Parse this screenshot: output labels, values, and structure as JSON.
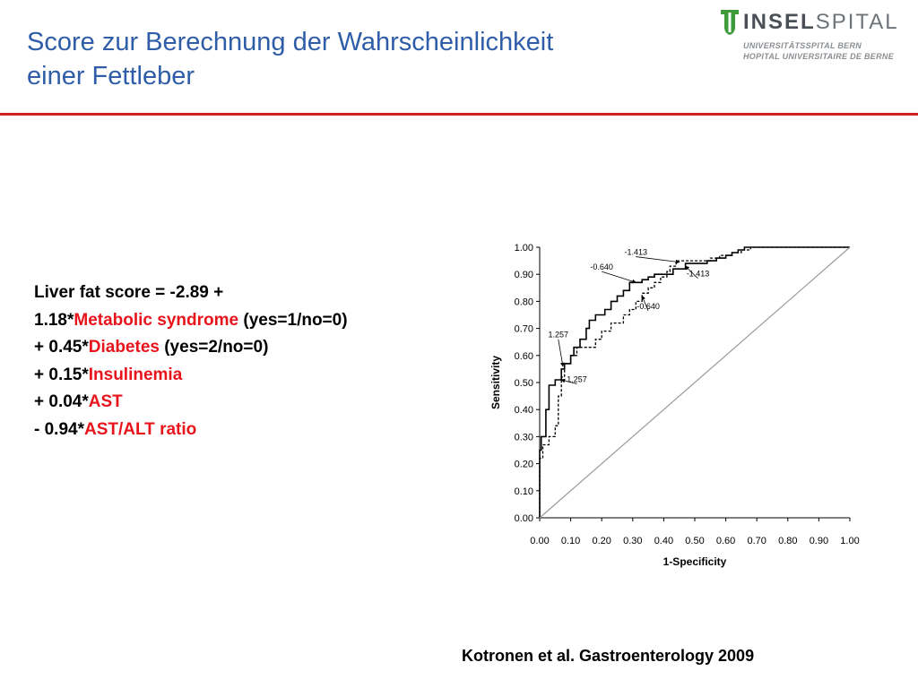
{
  "header": {
    "title_line1": "Score zur Berechnung der Wahrscheinlichkeit",
    "title_line2": "einer Fettleber"
  },
  "logo": {
    "brand_bold": "INSEL",
    "brand_light": "SPITAL",
    "subtitle1": "UNIVERSITÄTSSPITAL BERN",
    "subtitle2": "HOPITAL UNIVERSITAIRE DE BERNE",
    "accent_color": "#3f9a3a"
  },
  "formula": {
    "line1": "Liver fat score = -2.89 +",
    "line2_prefix": "1.18*",
    "line2_term": "Metabolic syndrome",
    "line2_suffix": " (yes=1/no=0)",
    "line3_prefix": "+ 0.45*",
    "line3_term": "Diabetes",
    "line3_suffix": " (yes=2/no=0)",
    "line4_prefix": "+ 0.15*",
    "line4_term": "Insulinemia",
    "line5_prefix": "+ 0.04*",
    "line5_term": "AST",
    "line6_prefix": "- 0.94*",
    "line6_term": "AST/ALT ratio",
    "highlight_color": "#e8141b"
  },
  "chart_data": {
    "type": "line",
    "xlabel": "1-Specificity",
    "ylabel": "Sensitivity",
    "xlim": [
      0,
      1
    ],
    "ylim": [
      0,
      1
    ],
    "x_ticks": [
      "0.00",
      "0.10",
      "0.20",
      "0.30",
      "0.40",
      "0.50",
      "0.60",
      "0.70",
      "0.80",
      "0.90",
      "1.00"
    ],
    "y_ticks": [
      "0.00",
      "0.10",
      "0.20",
      "0.30",
      "0.40",
      "0.50",
      "0.60",
      "0.70",
      "0.80",
      "0.90",
      "1.00"
    ],
    "grid": false,
    "legend": "none",
    "series": [
      {
        "style": "solid",
        "points": [
          [
            0,
            0
          ],
          [
            0,
            0.25
          ],
          [
            0.005,
            0.25
          ],
          [
            0.005,
            0.3
          ],
          [
            0.02,
            0.3
          ],
          [
            0.02,
            0.4
          ],
          [
            0.03,
            0.4
          ],
          [
            0.03,
            0.49
          ],
          [
            0.05,
            0.49
          ],
          [
            0.05,
            0.51
          ],
          [
            0.07,
            0.51
          ],
          [
            0.07,
            0.55
          ],
          [
            0.08,
            0.55
          ],
          [
            0.08,
            0.57
          ],
          [
            0.1,
            0.57
          ],
          [
            0.1,
            0.6
          ],
          [
            0.11,
            0.6
          ],
          [
            0.11,
            0.63
          ],
          [
            0.13,
            0.63
          ],
          [
            0.13,
            0.66
          ],
          [
            0.15,
            0.66
          ],
          [
            0.15,
            0.7
          ],
          [
            0.16,
            0.7
          ],
          [
            0.16,
            0.73
          ],
          [
            0.18,
            0.73
          ],
          [
            0.18,
            0.75
          ],
          [
            0.21,
            0.75
          ],
          [
            0.21,
            0.77
          ],
          [
            0.23,
            0.77
          ],
          [
            0.23,
            0.8
          ],
          [
            0.25,
            0.8
          ],
          [
            0.25,
            0.82
          ],
          [
            0.27,
            0.82
          ],
          [
            0.27,
            0.84
          ],
          [
            0.29,
            0.84
          ],
          [
            0.29,
            0.87
          ],
          [
            0.33,
            0.87
          ],
          [
            0.33,
            0.88
          ],
          [
            0.35,
            0.88
          ],
          [
            0.35,
            0.89
          ],
          [
            0.37,
            0.89
          ],
          [
            0.37,
            0.9
          ],
          [
            0.43,
            0.9
          ],
          [
            0.43,
            0.92
          ],
          [
            0.47,
            0.92
          ],
          [
            0.47,
            0.94
          ],
          [
            0.54,
            0.94
          ],
          [
            0.54,
            0.95
          ],
          [
            0.57,
            0.95
          ],
          [
            0.57,
            0.96
          ],
          [
            0.6,
            0.96
          ],
          [
            0.6,
            0.97
          ],
          [
            0.62,
            0.97
          ],
          [
            0.62,
            0.98
          ],
          [
            0.64,
            0.98
          ],
          [
            0.64,
            0.99
          ],
          [
            0.66,
            0.99
          ],
          [
            0.66,
            1.0
          ],
          [
            1.0,
            1.0
          ]
        ]
      },
      {
        "style": "dashed",
        "points": [
          [
            0,
            0
          ],
          [
            0,
            0.22
          ],
          [
            0.01,
            0.22
          ],
          [
            0.01,
            0.27
          ],
          [
            0.03,
            0.27
          ],
          [
            0.03,
            0.3
          ],
          [
            0.05,
            0.3
          ],
          [
            0.05,
            0.34
          ],
          [
            0.06,
            0.34
          ],
          [
            0.06,
            0.45
          ],
          [
            0.07,
            0.45
          ],
          [
            0.07,
            0.52
          ],
          [
            0.08,
            0.52
          ],
          [
            0.08,
            0.57
          ],
          [
            0.1,
            0.57
          ],
          [
            0.1,
            0.6
          ],
          [
            0.12,
            0.6
          ],
          [
            0.12,
            0.63
          ],
          [
            0.18,
            0.63
          ],
          [
            0.18,
            0.66
          ],
          [
            0.2,
            0.66
          ],
          [
            0.2,
            0.69
          ],
          [
            0.23,
            0.69
          ],
          [
            0.23,
            0.72
          ],
          [
            0.27,
            0.72
          ],
          [
            0.27,
            0.75
          ],
          [
            0.29,
            0.75
          ],
          [
            0.29,
            0.77
          ],
          [
            0.31,
            0.77
          ],
          [
            0.31,
            0.8
          ],
          [
            0.33,
            0.8
          ],
          [
            0.33,
            0.83
          ],
          [
            0.35,
            0.83
          ],
          [
            0.35,
            0.85
          ],
          [
            0.37,
            0.85
          ],
          [
            0.37,
            0.87
          ],
          [
            0.39,
            0.87
          ],
          [
            0.39,
            0.89
          ],
          [
            0.41,
            0.89
          ],
          [
            0.41,
            0.91
          ],
          [
            0.42,
            0.91
          ],
          [
            0.42,
            0.93
          ],
          [
            0.44,
            0.93
          ],
          [
            0.44,
            0.95
          ],
          [
            0.55,
            0.95
          ],
          [
            0.55,
            0.96
          ],
          [
            0.58,
            0.96
          ],
          [
            0.58,
            0.97
          ],
          [
            0.62,
            0.97
          ],
          [
            0.62,
            0.98
          ],
          [
            0.65,
            0.98
          ],
          [
            0.65,
            0.99
          ],
          [
            0.68,
            0.99
          ],
          [
            0.68,
            1.0
          ],
          [
            1.0,
            1.0
          ]
        ]
      },
      {
        "style": "reference",
        "points": [
          [
            0,
            0
          ],
          [
            1,
            1
          ]
        ]
      }
    ],
    "annotations": [
      {
        "text": "1.257",
        "x": 0.06,
        "y": 0.66,
        "arrow_to": [
          0.075,
          0.56
        ]
      },
      {
        "text": "1.257",
        "x": 0.12,
        "y": 0.495,
        "arrow_to": [
          0.07,
          0.51
        ]
      },
      {
        "text": "-0.640",
        "x": 0.2,
        "y": 0.91,
        "arrow_to": [
          0.31,
          0.87
        ]
      },
      {
        "text": "-0.640",
        "x": 0.35,
        "y": 0.765,
        "arrow_to": [
          0.33,
          0.82
        ]
      },
      {
        "text": "-1.413",
        "x": 0.31,
        "y": 0.965,
        "arrow_to": [
          0.45,
          0.945
        ]
      },
      {
        "text": "-1.413",
        "x": 0.51,
        "y": 0.885,
        "arrow_to": [
          0.47,
          0.93
        ]
      }
    ]
  },
  "citation": "Kotronen et al. Gastroenterology 2009"
}
